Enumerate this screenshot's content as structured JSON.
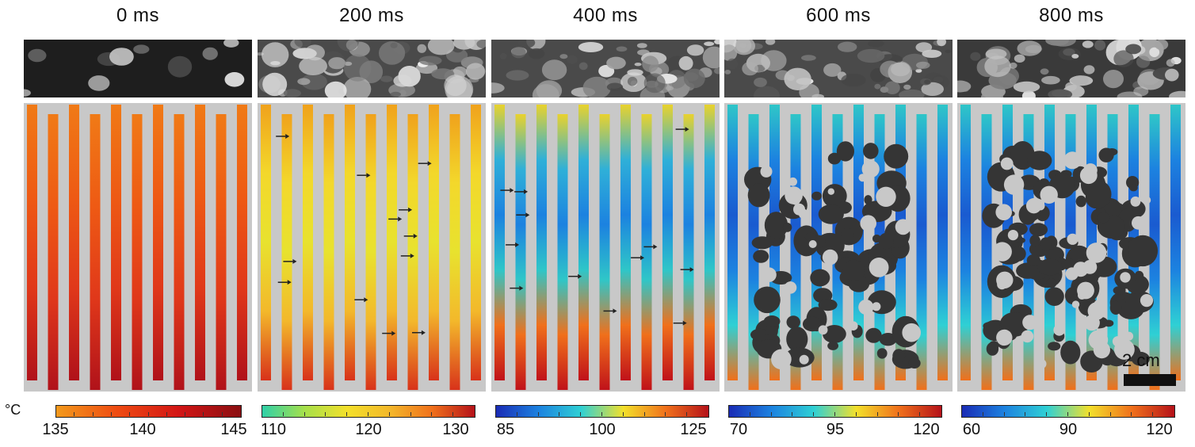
{
  "panels": [
    {
      "time": "0 ms",
      "ticks": [
        "135",
        "140",
        "145"
      ],
      "cmap": "hot",
      "profile": "uniform-hot"
    },
    {
      "time": "200 ms",
      "ticks": [
        "110",
        "120",
        "130"
      ],
      "cmap": "jet-hi",
      "profile": "yellow"
    },
    {
      "time": "400 ms",
      "ticks": [
        "85",
        "100",
        "125"
      ],
      "cmap": "jet",
      "profile": "cyan"
    },
    {
      "time": "600 ms",
      "ticks": [
        "70",
        "95",
        "120"
      ],
      "cmap": "jet",
      "profile": "blue-dry"
    },
    {
      "time": "800 ms",
      "ticks": [
        "60",
        "90",
        "120"
      ],
      "cmap": "jet",
      "profile": "blue-drier"
    }
  ],
  "unit_label": "°C",
  "scale_bar_label": "2 cm",
  "colors": {
    "hot": [
      "#f39a1c",
      "#ee4a12",
      "#d21515",
      "#8a0f12"
    ],
    "jet": [
      "#1a2bb5",
      "#1c82e0",
      "#2fd0d4",
      "#f3e02b",
      "#f0701b",
      "#b5121a"
    ],
    "background_gray": "#c8c8c8",
    "dry_patch": "#353535"
  }
}
